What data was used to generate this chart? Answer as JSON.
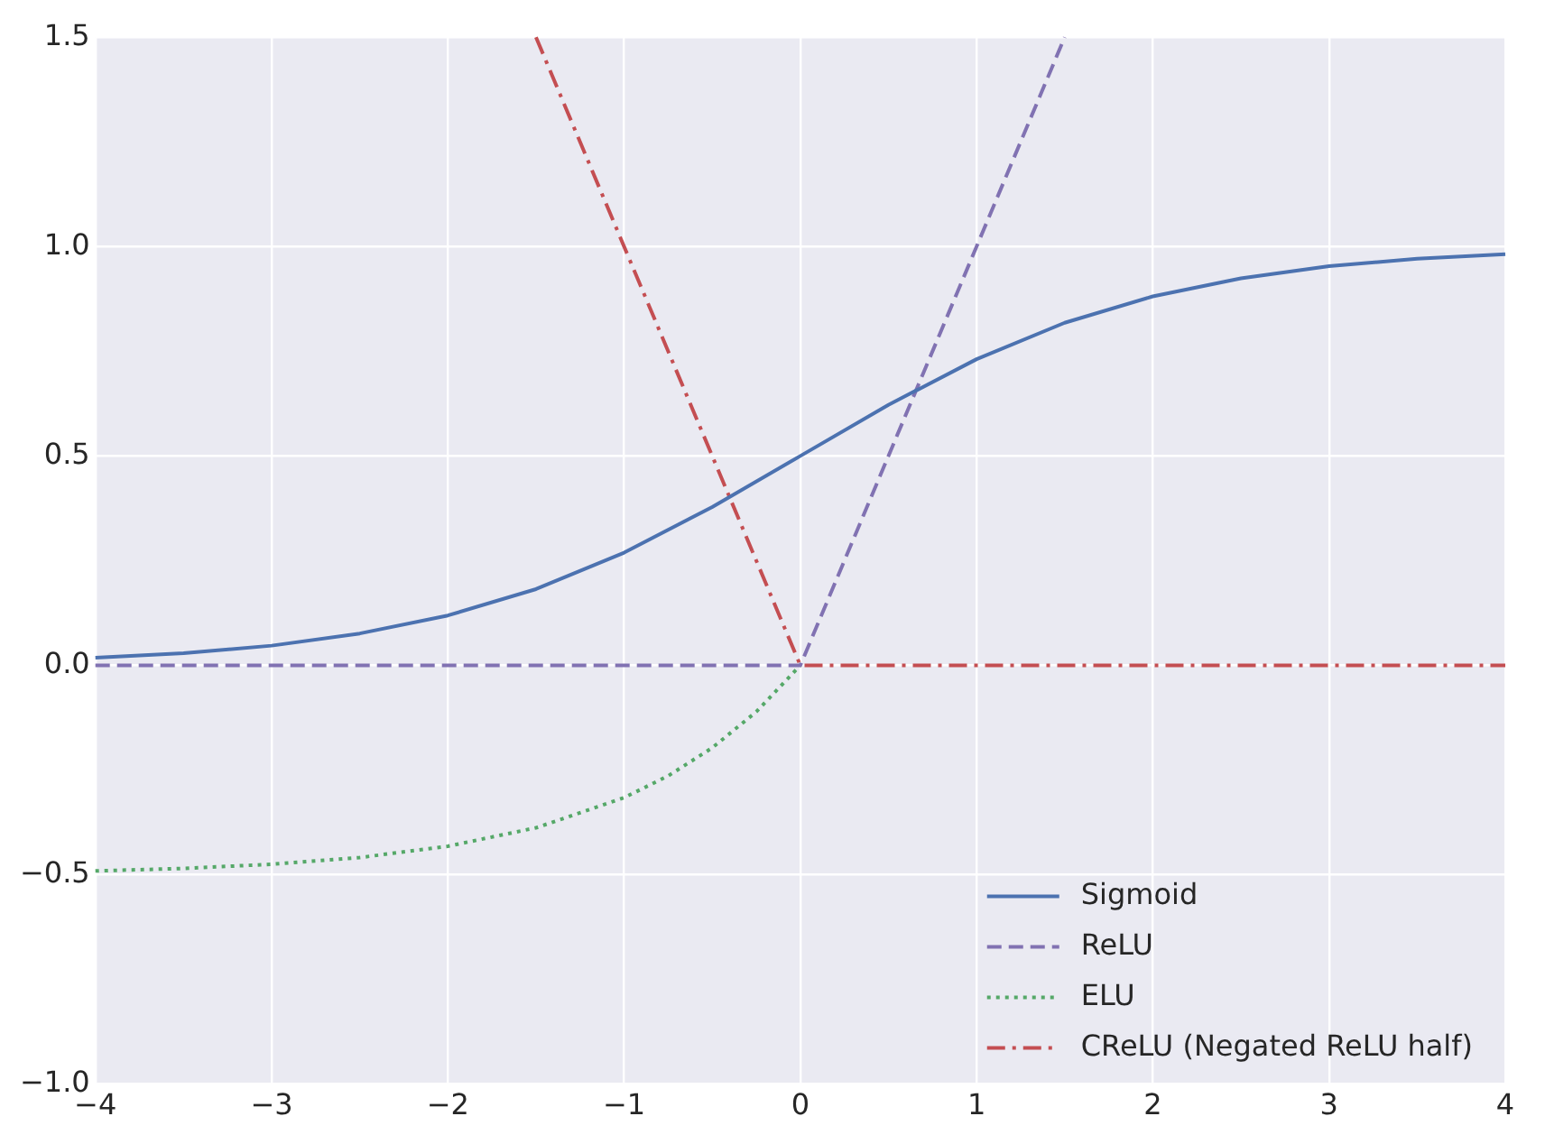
{
  "chart_data": {
    "type": "line",
    "xlim": [
      -4,
      4
    ],
    "ylim": [
      -1,
      1.5
    ],
    "xticks": [
      {
        "value": -4,
        "label": "−4"
      },
      {
        "value": -3,
        "label": "−3"
      },
      {
        "value": -2,
        "label": "−2"
      },
      {
        "value": -1,
        "label": "−1"
      },
      0,
      1,
      2,
      3,
      4
    ],
    "yticks": [
      {
        "value": -1,
        "label": "−1.0"
      },
      {
        "value": -0.5,
        "label": "−0.5"
      },
      {
        "value": 0,
        "label": "0.0"
      },
      {
        "value": 0.5,
        "label": "0.5"
      },
      {
        "value": 1,
        "label": "1.0"
      },
      {
        "value": 1.5,
        "label": "1.5"
      }
    ],
    "grid": true,
    "legend": "bottom right",
    "marker": "none",
    "series": [
      {
        "name": "Sigmoid",
        "color": "#4c72b0",
        "line_style": "solid",
        "x": [
          -4,
          -3.5,
          -3,
          -2.5,
          -2,
          -1.5,
          -1,
          -0.5,
          0,
          0.5,
          1,
          1.5,
          2,
          2.5,
          3,
          3.5,
          4
        ],
        "values": [
          0.018,
          0.029,
          0.047,
          0.076,
          0.119,
          0.182,
          0.269,
          0.378,
          0.5,
          0.622,
          0.731,
          0.818,
          0.881,
          0.924,
          0.953,
          0.971,
          0.982
        ]
      },
      {
        "name": "ReLU",
        "color": "#8172b2",
        "line_style": "dashed",
        "x": [
          -4,
          0,
          1.5
        ],
        "values": [
          0,
          0,
          1.5
        ]
      },
      {
        "name": "ELU",
        "color": "#55a868",
        "line_style": "dotted",
        "x": [
          -4,
          -3.5,
          -3,
          -2.5,
          -2,
          -1.5,
          -1,
          -0.75,
          -0.5,
          -0.25,
          0
        ],
        "values": [
          -0.491,
          -0.485,
          -0.475,
          -0.459,
          -0.432,
          -0.388,
          -0.316,
          -0.264,
          -0.197,
          -0.111,
          0
        ]
      },
      {
        "name": "CReLU (Negated ReLU half)",
        "color": "#c44e52",
        "line_style": "dashdot",
        "x": [
          -1.5,
          0,
          4
        ],
        "values": [
          1.5,
          0,
          0
        ]
      }
    ]
  }
}
